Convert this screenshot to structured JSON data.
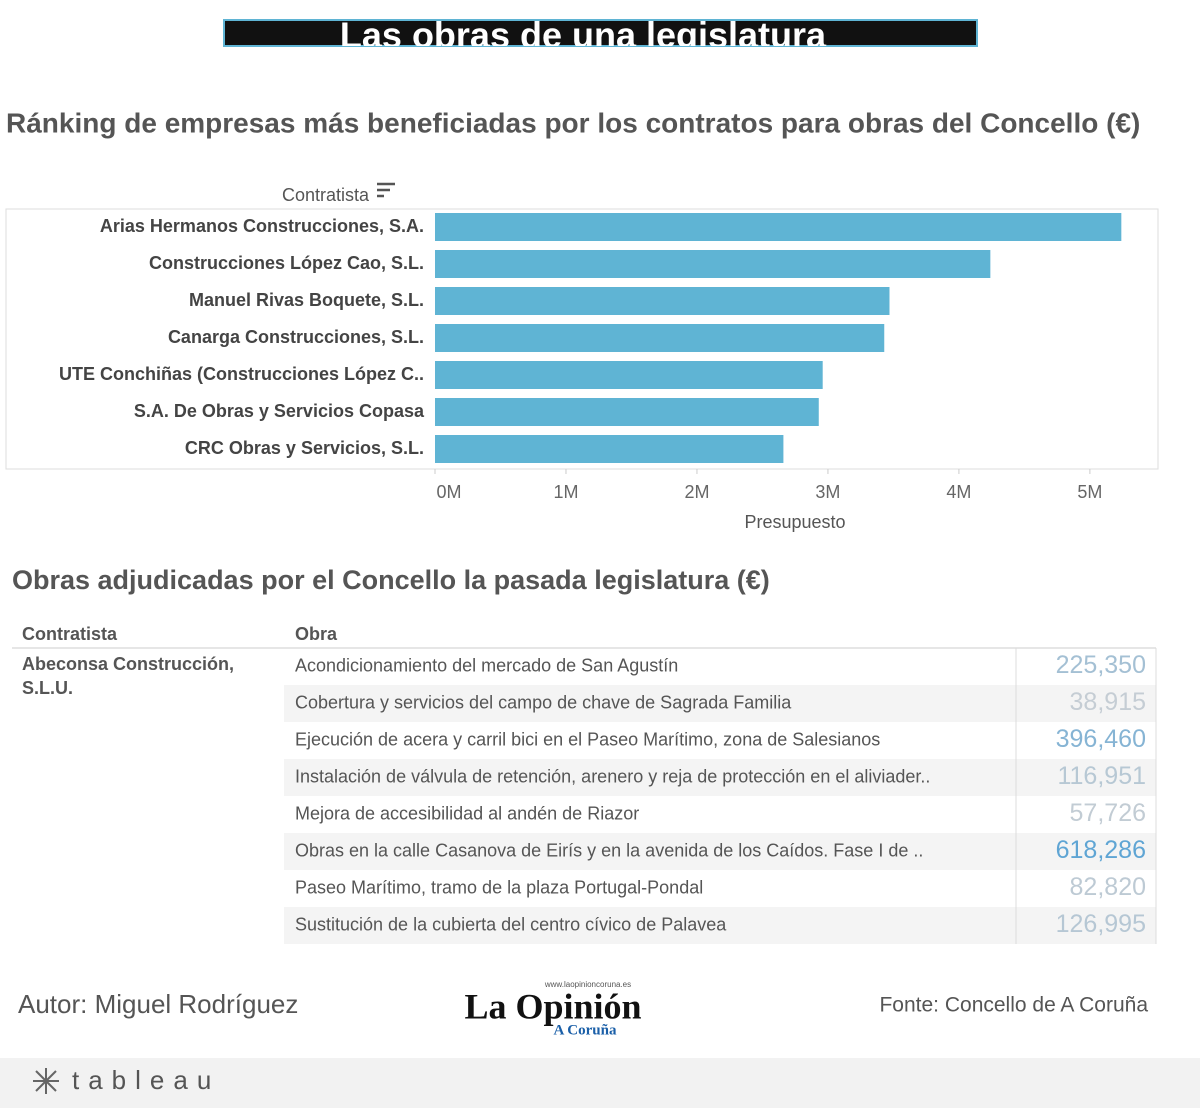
{
  "title": "Las obras de una legislatura",
  "chart_data": {
    "type": "bar",
    "orientation": "horizontal",
    "title": "Ránking de empresas más beneficiadas por los contratos para obras del Concello (€)",
    "y_axis_label": "Contratista",
    "x_axis_label": "Presupuesto",
    "categories": [
      "Arias Hermanos Construcciones, S.A.",
      "Construcciones López Cao, S.L.",
      "Manuel Rivas Boquete, S.L.",
      "Canarga Construcciones, S.L.",
      "UTE Conchiñas (Construcciones López C..",
      "S.A. De Obras y Servicios Copasa",
      "CRC Obras y Servicios, S.L."
    ],
    "values": [
      5240000,
      4240000,
      3470000,
      3430000,
      2960000,
      2930000,
      2660000
    ],
    "color": "#5fb4d4",
    "xlim": [
      0,
      5520000
    ],
    "xticks": [
      {
        "value": 0,
        "label": "0M"
      },
      {
        "value": 1000000,
        "label": "1M"
      },
      {
        "value": 2000000,
        "label": "2M"
      },
      {
        "value": 3000000,
        "label": "3M"
      },
      {
        "value": 4000000,
        "label": "4M"
      },
      {
        "value": 5000000,
        "label": "5M"
      }
    ],
    "grid": false
  },
  "table": {
    "title": "Obras adjudicadas por el Concello la pasada legislatura (€)",
    "columns": [
      "Contratista",
      "Obra"
    ],
    "contractor": "Abeconsa Construcción, S.L.U.",
    "rows": [
      [
        "Acondicionamiento del mercado de San Agustín",
        {
          "value": 225350,
          "label": "225,350"
        }
      ],
      [
        "Cobertura y servicios del campo de chave de Sagrada Familia",
        {
          "value": 38915,
          "label": "38,915"
        }
      ],
      [
        "Ejecución de acera y carril bici en el Paseo Marítimo, zona de Salesianos",
        {
          "value": 396460,
          "label": "396,460"
        }
      ],
      [
        "Instalación de válvula de retención, arenero y reja de protección en el aliviader..",
        {
          "value": 116951,
          "label": "116,951"
        }
      ],
      [
        "Mejora de accesibilidad al andén de Riazor",
        {
          "value": 57726,
          "label": "57,726"
        }
      ],
      [
        "Obras en la calle Casanova de Eirís y en la avenida de los Caídos. Fase I de ..",
        {
          "value": 618286,
          "label": "618,286"
        }
      ],
      [
        "Paseo Marítimo, tramo de la plaza Portugal-Pondal",
        {
          "value": 82820,
          "label": "82,820"
        }
      ],
      [
        "Sustitución de la cubierta del centro cívico de Palavea",
        {
          "value": 126995,
          "label": "126,995"
        }
      ]
    ]
  },
  "footer": {
    "author": "Autor: Miguel Rodríguez",
    "source": "Fonte: Concello de A Coruña",
    "logo": {
      "url": "www.laopinioncoruna.es",
      "name": "La Opinión",
      "city": "A Coruña"
    },
    "brand": "tableau"
  }
}
